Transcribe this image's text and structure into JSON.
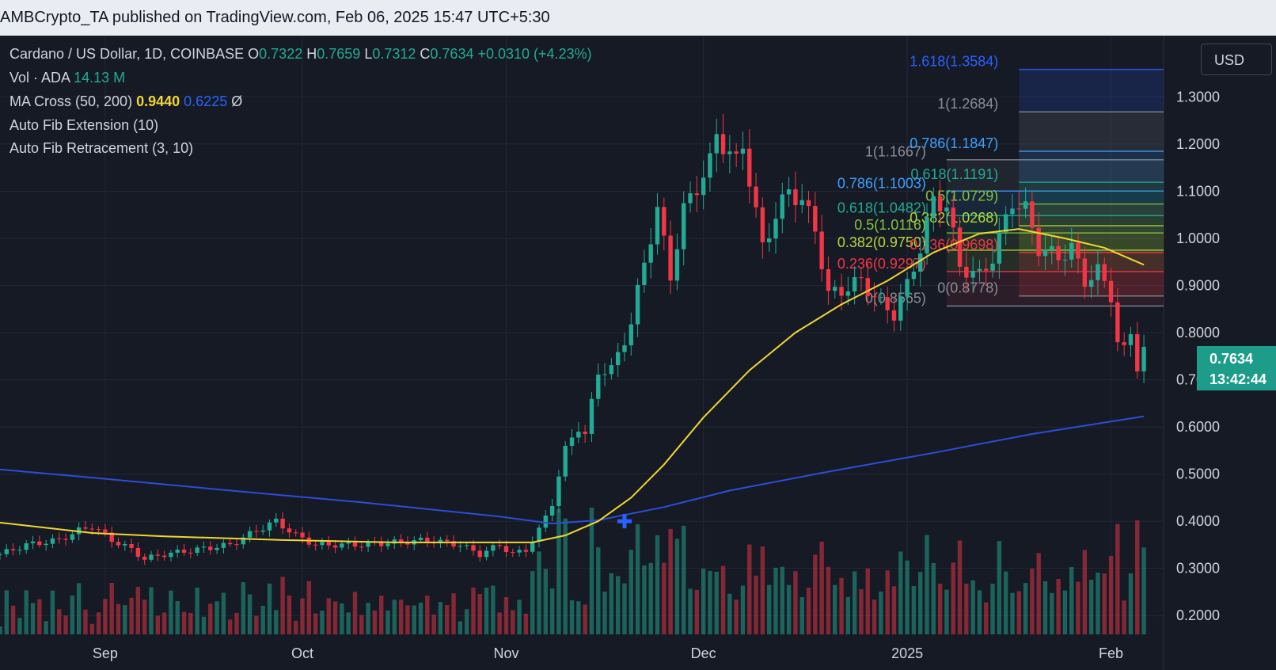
{
  "header": {
    "text": "AMBCrypto_TA published on TradingView.com, Feb 06, 2025 15:47 UTC+5:30"
  },
  "legend": {
    "symbol": "Cardano / US Dollar, 1D, COINBASE",
    "o_label": "O",
    "o_value": "0.7322",
    "h_label": "H",
    "h_value": "0.7659",
    "l_label": "L",
    "l_value": "0.7312",
    "c_label": "C",
    "c_value": "0.7634",
    "change": "+0.0310 (+4.23%)",
    "vol_label": "Vol · ADA",
    "vol_value": "14.13 M",
    "ma_label": "MA Cross (50, 200)",
    "ma50_value": "0.9440",
    "ma200_value": "0.6225",
    "ma_icon": "Ø",
    "fibext_label": "Auto Fib Extension (10)",
    "fibret_label": "Auto Fib Retracement (3, 10)"
  },
  "currency": "USD",
  "last_price": {
    "price": "0.7634",
    "countdown": "13:42:44"
  },
  "colors": {
    "up": "#22ab94",
    "down": "#f23645",
    "ma50": "#f0d631",
    "ma200": "#2a4fd6",
    "bg": "#161a25",
    "grid": "#232735"
  },
  "chart_data": {
    "type": "candlestick",
    "y_axis": {
      "min": 0.16,
      "max": 1.43,
      "ticks": [
        "0.2000",
        "0.3000",
        "0.4000",
        "0.5000",
        "0.6000",
        "0.7000",
        "0.8000",
        "0.9000",
        "1.0000",
        "1.1000",
        "1.2000",
        "1.3000"
      ]
    },
    "x_axis": {
      "start": "2024-08-16",
      "end": "2025-02-09",
      "tick_labels": [
        {
          "date": "2024-09-01",
          "label": "Sep"
        },
        {
          "date": "2024-10-01",
          "label": "Oct"
        },
        {
          "date": "2024-11-01",
          "label": "Nov"
        },
        {
          "date": "2024-12-01",
          "label": "Dec"
        },
        {
          "date": "2025-01-01",
          "label": "2025"
        },
        {
          "date": "2025-02-01",
          "label": "Feb"
        }
      ]
    },
    "price_anchors": [
      [
        "2024-08-16",
        0.33
      ],
      [
        "2024-08-20",
        0.35
      ],
      [
        "2024-08-25",
        0.36
      ],
      [
        "2024-08-28",
        0.38
      ],
      [
        "2024-08-30",
        0.39
      ],
      [
        "2024-09-02",
        0.36
      ],
      [
        "2024-09-05",
        0.34
      ],
      [
        "2024-09-07",
        0.32
      ],
      [
        "2024-09-10",
        0.33
      ],
      [
        "2024-09-15",
        0.34
      ],
      [
        "2024-09-20",
        0.35
      ],
      [
        "2024-09-24",
        0.38
      ],
      [
        "2024-09-27",
        0.4
      ],
      [
        "2024-09-30",
        0.37
      ],
      [
        "2024-10-03",
        0.35
      ],
      [
        "2024-10-10",
        0.35
      ],
      [
        "2024-10-15",
        0.355
      ],
      [
        "2024-10-20",
        0.36
      ],
      [
        "2024-10-25",
        0.35
      ],
      [
        "2024-10-28",
        0.33
      ],
      [
        "2024-10-31",
        0.35
      ],
      [
        "2024-11-02",
        0.33
      ],
      [
        "2024-11-04",
        0.34
      ],
      [
        "2024-11-06",
        0.38
      ],
      [
        "2024-11-08",
        0.44
      ],
      [
        "2024-11-10",
        0.55
      ],
      [
        "2024-11-11",
        0.58
      ],
      [
        "2024-11-12",
        0.6
      ],
      [
        "2024-11-13",
        0.58
      ],
      [
        "2024-11-15",
        0.72
      ],
      [
        "2024-11-17",
        0.72
      ],
      [
        "2024-11-20",
        0.82
      ],
      [
        "2024-11-22",
        0.95
      ],
      [
        "2024-11-24",
        1.06
      ],
      [
        "2024-11-26",
        0.92
      ],
      [
        "2024-11-28",
        1.06
      ],
      [
        "2024-12-02",
        1.16
      ],
      [
        "2024-12-03",
        1.22
      ],
      [
        "2024-12-06",
        1.16
      ],
      [
        "2024-12-07",
        1.2
      ],
      [
        "2024-12-10",
        0.98
      ],
      [
        "2024-12-12",
        1.05
      ],
      [
        "2024-12-14",
        1.1
      ],
      [
        "2024-12-16",
        1.08
      ],
      [
        "2024-12-18",
        1.02
      ],
      [
        "2024-12-20",
        0.88
      ],
      [
        "2024-12-22",
        0.89
      ],
      [
        "2024-12-25",
        0.91
      ],
      [
        "2024-12-28",
        0.86
      ],
      [
        "2024-12-30",
        0.84
      ],
      [
        "2025-01-01",
        0.9
      ],
      [
        "2025-01-03",
        0.98
      ],
      [
        "2025-01-05",
        1.08
      ],
      [
        "2025-01-07",
        1.07
      ],
      [
        "2025-01-09",
        0.94
      ],
      [
        "2025-01-12",
        0.92
      ],
      [
        "2025-01-14",
        0.96
      ],
      [
        "2025-01-17",
        1.08
      ],
      [
        "2025-01-19",
        1.06
      ],
      [
        "2025-01-21",
        0.98
      ],
      [
        "2025-01-24",
        0.96
      ],
      [
        "2025-01-26",
        0.98
      ],
      [
        "2025-01-28",
        0.91
      ],
      [
        "2025-01-30",
        0.93
      ],
      [
        "2025-02-01",
        0.88
      ],
      [
        "2025-02-02",
        0.78
      ],
      [
        "2025-02-03",
        0.76
      ],
      [
        "2025-02-04",
        0.8
      ],
      [
        "2025-02-05",
        0.73
      ],
      [
        "2025-02-06",
        0.7634
      ]
    ],
    "ma50": [
      [
        "2024-08-16",
        0.397
      ],
      [
        "2024-08-30",
        0.375
      ],
      [
        "2024-09-10",
        0.368
      ],
      [
        "2024-09-28",
        0.36
      ],
      [
        "2024-10-15",
        0.355
      ],
      [
        "2024-10-31",
        0.355
      ],
      [
        "2024-11-05",
        0.355
      ],
      [
        "2024-11-10",
        0.37
      ],
      [
        "2024-11-15",
        0.4
      ],
      [
        "2024-11-20",
        0.45
      ],
      [
        "2024-11-25",
        0.52
      ],
      [
        "2024-12-01",
        0.62
      ],
      [
        "2024-12-08",
        0.72
      ],
      [
        "2024-12-15",
        0.8
      ],
      [
        "2024-12-22",
        0.86
      ],
      [
        "2024-12-29",
        0.91
      ],
      [
        "2025-01-05",
        0.97
      ],
      [
        "2025-01-12",
        1.01
      ],
      [
        "2025-01-18",
        1.02
      ],
      [
        "2025-01-25",
        1.0
      ],
      [
        "2025-01-31",
        0.98
      ],
      [
        "2025-02-06",
        0.944
      ]
    ],
    "ma200": [
      [
        "2024-08-16",
        0.51
      ],
      [
        "2024-09-01",
        0.49
      ],
      [
        "2024-09-20",
        0.465
      ],
      [
        "2024-10-10",
        0.44
      ],
      [
        "2024-10-31",
        0.41
      ],
      [
        "2024-11-08",
        0.395
      ],
      [
        "2024-11-15",
        0.402
      ],
      [
        "2024-11-25",
        0.43
      ],
      [
        "2024-12-05",
        0.465
      ],
      [
        "2024-12-20",
        0.505
      ],
      [
        "2025-01-05",
        0.545
      ],
      [
        "2025-01-20",
        0.585
      ],
      [
        "2025-02-06",
        0.6225
      ]
    ],
    "fib_extension": {
      "start": "2025-01-18",
      "levels": [
        {
          "ratio": "1.618",
          "value": 1.3584,
          "label": "1.618(1.3584)",
          "color": "#2a62ff"
        },
        {
          "ratio": "1",
          "value": 1.2684,
          "label": "1(1.2684)",
          "color": "#8a8d96"
        },
        {
          "ratio": "0.786",
          "value": 1.1847,
          "label": "0.786(1.1847)",
          "color": "#3ea0ff"
        },
        {
          "ratio": "0.618",
          "value": 1.1191,
          "label": "0.618(1.1191)",
          "color": "#22ab94"
        },
        {
          "ratio": "0.5",
          "value": 1.0729,
          "label": "0.5(1.0729)",
          "color": "#82c341"
        },
        {
          "ratio": "0.382",
          "value": 1.0268,
          "label": "0.382(1.0268)",
          "color": "#b6d73a"
        },
        {
          "ratio": "0.236",
          "value": 0.9698,
          "label": "0.236(0.9698)",
          "color": "#f23645"
        },
        {
          "ratio": "0",
          "value": 0.8778,
          "label": "0(0.8778)",
          "color": "#8a8d96"
        }
      ]
    },
    "fib_retracement": {
      "start": "2025-01-07",
      "levels": [
        {
          "ratio": "1",
          "value": 1.1667,
          "label": "1(1.1667)",
          "color": "#8a8d96"
        },
        {
          "ratio": "0.786",
          "value": 1.1003,
          "label": "0.786(1.1003)",
          "color": "#3ea0ff"
        },
        {
          "ratio": "0.618",
          "value": 1.0482,
          "label": "0.618(1.0482)",
          "color": "#22ab94"
        },
        {
          "ratio": "0.5",
          "value": 1.0116,
          "label": "0.5(1.0116)",
          "color": "#82c341"
        },
        {
          "ratio": "0.382",
          "value": 0.975,
          "label": "0.382(0.9750)",
          "color": "#b6d73a"
        },
        {
          "ratio": "0.236",
          "value": 0.9297,
          "label": "0.236(0.9297)",
          "color": "#f23645"
        },
        {
          "ratio": "0",
          "value": 0.8565,
          "label": "0(0.8565)",
          "color": "#8a8d96"
        }
      ]
    },
    "cross_marker": {
      "date": "2024-11-19",
      "value": 0.4
    }
  }
}
